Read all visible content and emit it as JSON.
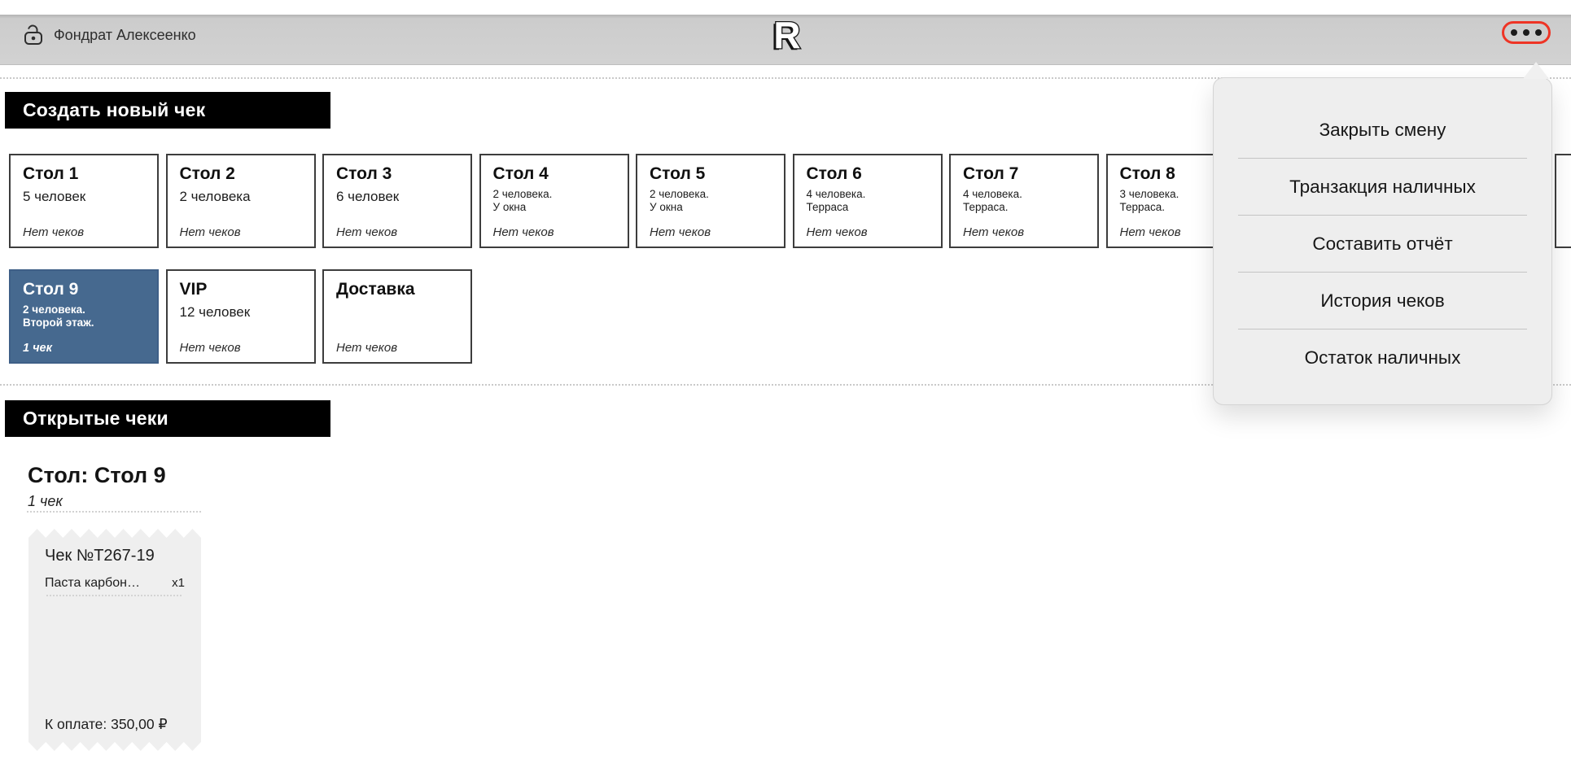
{
  "topbar": {
    "user": "Фондрат Алексеенко",
    "logo": "R"
  },
  "context_menu": {
    "items": [
      "Закрыть смену",
      "Транзакция наличных",
      "Составить отчёт",
      "История чеков",
      "Остаток наличных"
    ]
  },
  "create_section": {
    "title": "Создать новый чек"
  },
  "tables": {
    "rows": [
      [
        {
          "name": "Стол 1",
          "desc": [
            "5 человек"
          ],
          "status": "Нет чеков",
          "selected": false
        },
        {
          "name": "Стол 2",
          "desc": [
            "2 человека"
          ],
          "status": "Нет чеков",
          "selected": false
        },
        {
          "name": "Стол 3",
          "desc": [
            "6 человек"
          ],
          "status": "Нет чеков",
          "selected": false
        },
        {
          "name": "Стол 4",
          "desc": [
            "2 человека.",
            "У окна"
          ],
          "status": "Нет чеков",
          "selected": false
        },
        {
          "name": "Стол 5",
          "desc": [
            "2 человека.",
            "У окна"
          ],
          "status": "Нет чеков",
          "selected": false
        },
        {
          "name": "Стол 6",
          "desc": [
            "4 человека.",
            "Терраса"
          ],
          "status": "Нет чеков",
          "selected": false
        },
        {
          "name": "Стол 7",
          "desc": [
            "4 человека.",
            "Терраса."
          ],
          "status": "Нет чеков",
          "selected": false
        },
        {
          "name": "Стол 8",
          "desc": [
            "3 человека.",
            "Терраса."
          ],
          "status": "Нет чеков",
          "selected": false
        }
      ],
      [
        {
          "name": "Стол 9",
          "desc": [
            "2 человека.",
            "Второй этаж."
          ],
          "status": "1 чек",
          "selected": true
        },
        {
          "name": "VIP",
          "desc": [
            "12 человек"
          ],
          "status": "Нет чеков",
          "selected": false
        },
        {
          "name": "Доставка",
          "desc": [],
          "status": "Нет чеков",
          "selected": false
        }
      ]
    ]
  },
  "open_section": {
    "title": "Открытые чеки",
    "group_title": "Стол: Стол 9",
    "group_count": "1 чек",
    "receipts": [
      {
        "number": "Чек №Т267-19",
        "lines": [
          {
            "name": "Паста карбон…",
            "qty": "х1"
          }
        ],
        "total": "К оплате: 350,00 ₽"
      }
    ]
  },
  "colors": {
    "accent_red": "#ee3425",
    "selected_blue": "#46698f",
    "topbar_gray": "#d2d2d2",
    "popover_gray": "#eeeeee",
    "receipt_gray": "#efefef",
    "header_black": "#000000"
  }
}
